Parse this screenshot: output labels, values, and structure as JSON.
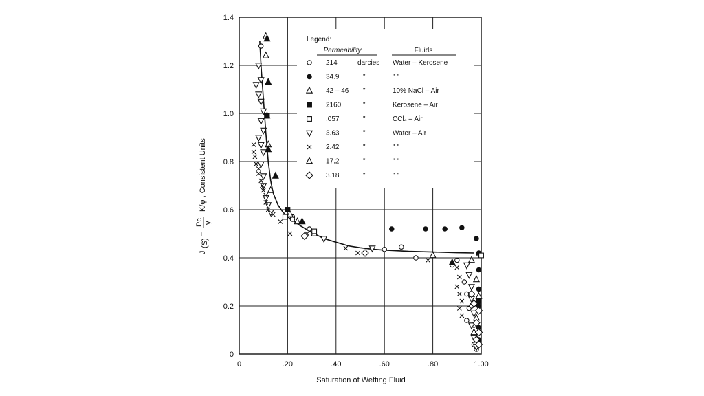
{
  "chart_data": {
    "type": "scatter",
    "xlabel": "Saturation of Wetting Fluid",
    "ylabel": {
      "prefix": "J",
      "sub": "(S)",
      "eq": "=",
      "frac_num": "Pc",
      "frac_den": "γ",
      "rest": "K/φ ,  Consistent Units"
    },
    "xlim": [
      0,
      1.0
    ],
    "ylim": [
      0,
      1.4
    ],
    "grid": true,
    "xticks": [
      {
        "v": 0,
        "label": "0"
      },
      {
        "v": 0.2,
        "label": ".20"
      },
      {
        "v": 0.4,
        "label": ".40"
      },
      {
        "v": 0.6,
        "label": ".60"
      },
      {
        "v": 0.8,
        "label": ".80"
      },
      {
        "v": 1.0,
        "label": "1.00"
      }
    ],
    "yticks": [
      {
        "v": 0,
        "label": "0"
      },
      {
        "v": 0.2,
        "label": "0.2"
      },
      {
        "v": 0.4,
        "label": "0.4"
      },
      {
        "v": 0.6,
        "label": "0.6"
      },
      {
        "v": 0.8,
        "label": "0.8"
      },
      {
        "v": 1.0,
        "label": "1.0"
      },
      {
        "v": 1.2,
        "label": "1.2"
      },
      {
        "v": 1.4,
        "label": "1.4"
      }
    ],
    "legend": {
      "title": "Legend:",
      "col_perm": "Permeability",
      "col_fluid": "Fluids",
      "placement": "top-right",
      "rows": [
        {
          "marker": "circle-open",
          "perm": "214",
          "unit": "darcies",
          "fluid": "Water  –  Kerosene"
        },
        {
          "marker": "circle-filled",
          "perm": "34.9",
          "unit": "\"",
          "fluid": "\"          \""
        },
        {
          "marker": "triangle-up-open",
          "perm": "42 – 46",
          "unit": "\"",
          "fluid": "10% NaCl  –  Air"
        },
        {
          "marker": "square-filled",
          "perm": "2160",
          "unit": "\"",
          "fluid": "Kerosene  –  Air"
        },
        {
          "marker": "square-open",
          "perm": ".057",
          "unit": "\"",
          "fluid": "CCl₄  –  Air"
        },
        {
          "marker": "triangle-down-open",
          "perm": "3.63",
          "unit": "\"",
          "fluid": "Water  –  Air"
        },
        {
          "marker": "x",
          "perm": "2.42",
          "unit": "\"",
          "fluid": "\"        \""
        },
        {
          "marker": "triangle-up-open",
          "perm": "17.2",
          "unit": "\"",
          "fluid": "\"        \""
        },
        {
          "marker": "diamond-open",
          "perm": "3.18",
          "unit": "\"",
          "fluid": "\"        \""
        }
      ]
    },
    "curve": [
      [
        0.085,
        1.3
      ],
      [
        0.09,
        1.2
      ],
      [
        0.1,
        1.06
      ],
      [
        0.11,
        0.92
      ],
      [
        0.12,
        0.8
      ],
      [
        0.13,
        0.72
      ],
      [
        0.14,
        0.67
      ],
      [
        0.16,
        0.62
      ],
      [
        0.18,
        0.59
      ],
      [
        0.2,
        0.57
      ],
      [
        0.25,
        0.535
      ],
      [
        0.3,
        0.505
      ],
      [
        0.35,
        0.48
      ],
      [
        0.4,
        0.465
      ],
      [
        0.45,
        0.45
      ],
      [
        0.5,
        0.442
      ],
      [
        0.55,
        0.436
      ],
      [
        0.6,
        0.432
      ],
      [
        0.7,
        0.427
      ],
      [
        0.8,
        0.424
      ],
      [
        0.9,
        0.421
      ],
      [
        0.97,
        0.42
      ]
    ],
    "series": [
      {
        "marker": "circle-open",
        "points": [
          [
            0.09,
            1.28
          ],
          [
            0.22,
            0.57
          ],
          [
            0.22,
            0.56
          ],
          [
            0.29,
            0.52
          ],
          [
            0.6,
            0.435
          ],
          [
            0.67,
            0.445
          ],
          [
            0.73,
            0.4
          ],
          [
            0.9,
            0.39
          ],
          [
            0.88,
            0.37
          ],
          [
            0.93,
            0.3
          ],
          [
            0.94,
            0.25
          ],
          [
            0.95,
            0.19
          ],
          [
            0.94,
            0.14
          ],
          [
            0.97,
            0.12
          ],
          [
            0.98,
            0.08
          ],
          [
            0.99,
            0.06
          ],
          [
            0.97,
            0.04
          ],
          [
            0.98,
            0.02
          ],
          [
            0.96,
            0.2
          ],
          [
            0.99,
            0.415
          ]
        ]
      },
      {
        "marker": "circle-filled",
        "points": [
          [
            0.63,
            0.52
          ],
          [
            0.77,
            0.52
          ],
          [
            0.85,
            0.52
          ],
          [
            0.92,
            0.525
          ],
          [
            0.98,
            0.48
          ],
          [
            0.99,
            0.42
          ],
          [
            0.99,
            0.35
          ],
          [
            0.99,
            0.27
          ],
          [
            0.99,
            0.2
          ],
          [
            0.99,
            0.11
          ],
          [
            0.99,
            0.06
          ]
        ]
      },
      {
        "marker": "triangle-up-open",
        "points": [
          [
            0.11,
            1.32
          ],
          [
            0.11,
            1.24
          ],
          [
            0.12,
            0.87
          ],
          [
            0.13,
            0.68
          ],
          [
            0.21,
            0.58
          ],
          [
            0.24,
            0.55
          ],
          [
            0.31,
            0.5
          ],
          [
            0.8,
            0.41
          ],
          [
            0.96,
            0.39
          ],
          [
            0.98,
            0.31
          ],
          [
            0.99,
            0.24
          ],
          [
            0.98,
            0.15
          ],
          [
            0.97,
            0.09
          ],
          [
            0.98,
            0.05
          ]
        ]
      },
      {
        "marker": "triangle-up-filled",
        "points": [
          [
            0.115,
            1.31
          ],
          [
            0.12,
            1.13
          ],
          [
            0.115,
            0.99
          ],
          [
            0.12,
            0.85
          ],
          [
            0.15,
            0.74
          ],
          [
            0.26,
            0.55
          ],
          [
            0.88,
            0.38
          ]
        ]
      },
      {
        "marker": "square-filled",
        "points": [
          [
            0.115,
            0.99
          ],
          [
            0.2,
            0.6
          ],
          [
            0.99,
            0.22
          ]
        ]
      },
      {
        "marker": "square-open",
        "points": [
          [
            0.19,
            0.57
          ],
          [
            0.31,
            0.51
          ],
          [
            1.0,
            0.41
          ]
        ]
      },
      {
        "marker": "triangle-down-open",
        "points": [
          [
            0.08,
            1.2
          ],
          [
            0.07,
            1.12
          ],
          [
            0.09,
            1.14
          ],
          [
            0.08,
            1.08
          ],
          [
            0.09,
            1.05
          ],
          [
            0.1,
            1.01
          ],
          [
            0.09,
            0.97
          ],
          [
            0.1,
            0.93
          ],
          [
            0.08,
            0.9
          ],
          [
            0.09,
            0.87
          ],
          [
            0.1,
            0.84
          ],
          [
            0.09,
            0.79
          ],
          [
            0.1,
            0.74
          ],
          [
            0.1,
            0.7
          ],
          [
            0.11,
            0.65
          ],
          [
            0.12,
            0.62
          ],
          [
            0.13,
            0.59
          ],
          [
            0.35,
            0.48
          ],
          [
            0.55,
            0.44
          ],
          [
            0.94,
            0.37
          ],
          [
            0.95,
            0.33
          ],
          [
            0.96,
            0.28
          ],
          [
            0.96,
            0.23
          ],
          [
            0.97,
            0.17
          ],
          [
            0.96,
            0.12
          ],
          [
            0.97,
            0.07
          ],
          [
            0.98,
            0.03
          ]
        ]
      },
      {
        "marker": "x",
        "points": [
          [
            0.06,
            0.87
          ],
          [
            0.06,
            0.84
          ],
          [
            0.065,
            0.82
          ],
          [
            0.07,
            0.79
          ],
          [
            0.08,
            0.77
          ],
          [
            0.08,
            0.75
          ],
          [
            0.09,
            0.72
          ],
          [
            0.095,
            0.7
          ],
          [
            0.1,
            0.68
          ],
          [
            0.11,
            0.66
          ],
          [
            0.11,
            0.63
          ],
          [
            0.12,
            0.6
          ],
          [
            0.14,
            0.58
          ],
          [
            0.17,
            0.55
          ],
          [
            0.21,
            0.5
          ],
          [
            0.28,
            0.5
          ],
          [
            0.44,
            0.44
          ],
          [
            0.49,
            0.42
          ],
          [
            0.78,
            0.39
          ],
          [
            0.9,
            0.36
          ],
          [
            0.91,
            0.32
          ],
          [
            0.9,
            0.28
          ],
          [
            0.91,
            0.25
          ],
          [
            0.92,
            0.22
          ],
          [
            0.91,
            0.19
          ],
          [
            0.92,
            0.16
          ]
        ]
      },
      {
        "marker": "diamond-open",
        "points": [
          [
            0.27,
            0.49
          ],
          [
            0.52,
            0.42
          ],
          [
            0.96,
            0.25
          ],
          [
            0.97,
            0.21
          ],
          [
            0.99,
            0.18
          ],
          [
            0.98,
            0.13
          ],
          [
            0.99,
            0.09
          ],
          [
            0.98,
            0.06
          ],
          [
            0.99,
            0.04
          ]
        ]
      }
    ]
  }
}
